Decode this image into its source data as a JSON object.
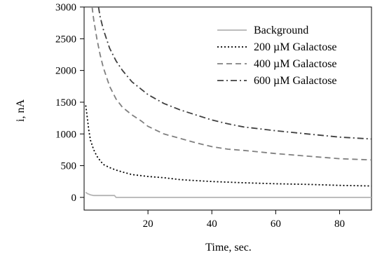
{
  "chart_data": {
    "type": "line",
    "title": "",
    "xlabel": "Time, sec.",
    "ylabel": "i, nA",
    "xlim": [
      0,
      90
    ],
    "ylim": [
      -200,
      3000
    ],
    "xticks": [
      20,
      40,
      60,
      80
    ],
    "yticks": [
      0,
      500,
      1000,
      1500,
      2000,
      2500,
      3000
    ],
    "grid": false,
    "legend_position": "top-right",
    "series": [
      {
        "name": "Background",
        "color": "#b3b3b3",
        "dash": "solid",
        "x": [
          0.5,
          1,
          2,
          3,
          5,
          8,
          9.5,
          10,
          15,
          20,
          30,
          40,
          50,
          60,
          70,
          80,
          90
        ],
        "y": [
          80,
          60,
          40,
          30,
          30,
          30,
          30,
          0,
          0,
          0,
          0,
          0,
          0,
          0,
          0,
          0,
          0
        ]
      },
      {
        "name": "200 µM Galactose",
        "color": "#000000",
        "dash": "dot",
        "x": [
          0.5,
          1,
          1.5,
          2,
          3,
          4,
          5,
          6,
          8,
          10,
          12,
          15,
          20,
          25,
          30,
          35,
          40,
          50,
          60,
          70,
          80,
          90
        ],
        "y": [
          1450,
          1250,
          1050,
          900,
          750,
          650,
          580,
          520,
          470,
          430,
          400,
          360,
          330,
          310,
          280,
          265,
          250,
          230,
          215,
          205,
          190,
          180
        ]
      },
      {
        "name": "400 µM Galactose",
        "color": "#808080",
        "dash": "dash",
        "x": [
          2.5,
          3,
          4,
          5,
          6,
          8,
          10,
          12,
          15,
          18,
          20,
          25,
          30,
          35,
          40,
          45,
          50,
          60,
          70,
          80,
          90
        ],
        "y": [
          3000,
          2800,
          2500,
          2250,
          2050,
          1750,
          1550,
          1420,
          1300,
          1200,
          1120,
          1000,
          930,
          860,
          800,
          760,
          740,
          690,
          650,
          610,
          590
        ]
      },
      {
        "name": "600 µM Galactose",
        "color": "#404040",
        "dash": "dashdot",
        "x": [
          4.5,
          5,
          6,
          8,
          10,
          12,
          15,
          18,
          20,
          25,
          30,
          35,
          40,
          45,
          50,
          55,
          60,
          70,
          80,
          90
        ],
        "y": [
          3000,
          2850,
          2650,
          2350,
          2150,
          2000,
          1820,
          1700,
          1620,
          1480,
          1380,
          1300,
          1220,
          1160,
          1110,
          1080,
          1050,
          1000,
          950,
          920
        ]
      }
    ]
  }
}
